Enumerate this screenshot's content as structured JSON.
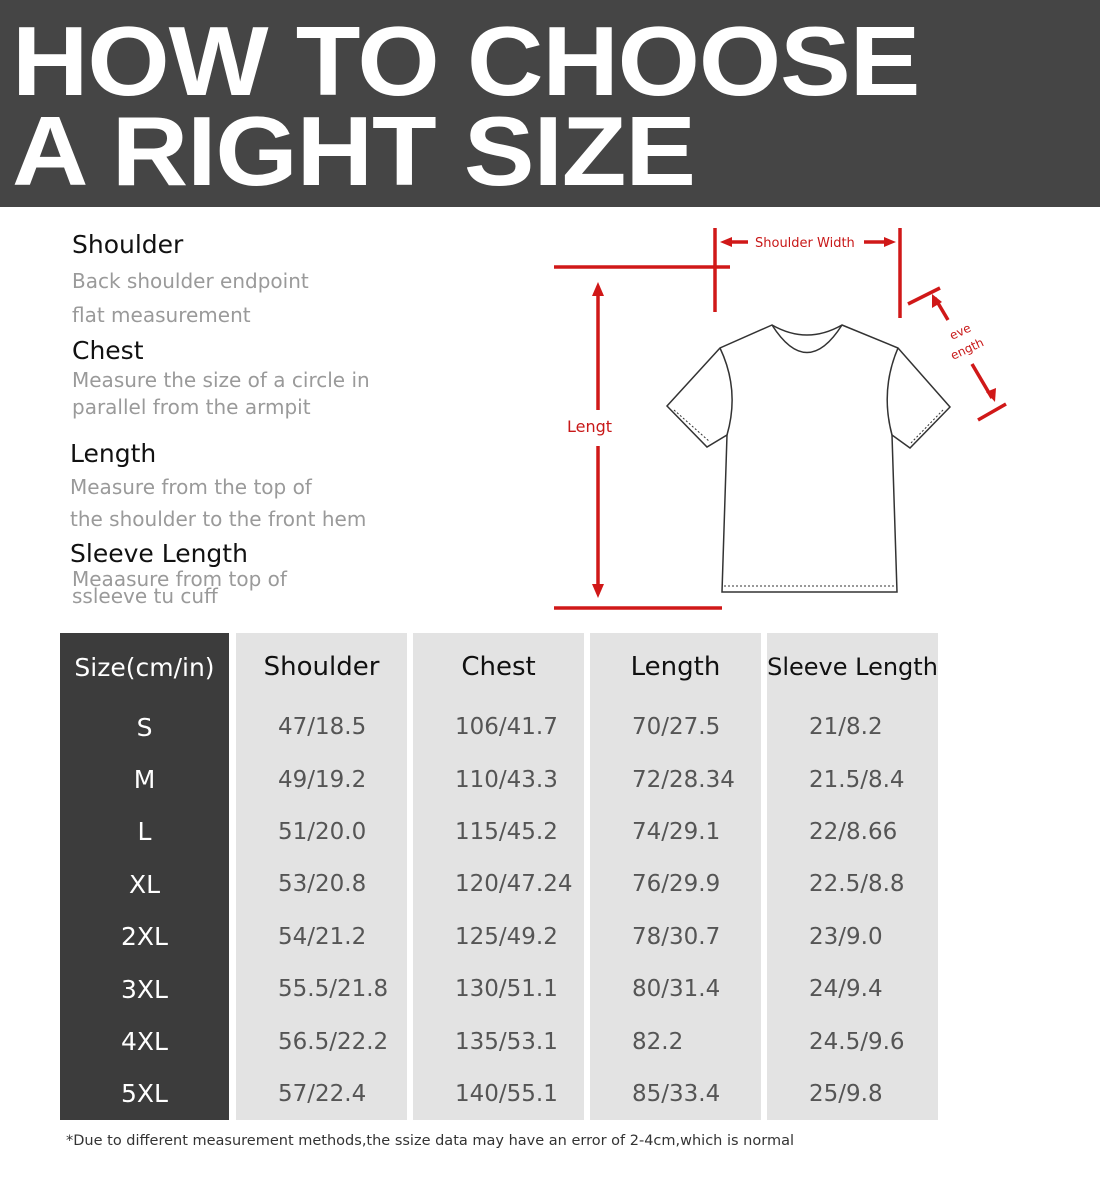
{
  "banner": {
    "line1": "HOW TO CHOOSE",
    "line2": "A RIGHT SIZE",
    "background": "#454545"
  },
  "definitions": [
    {
      "term": "Shoulder",
      "desc1": "Back shoulder endpoint",
      "desc2": "flat measurement"
    },
    {
      "term": "Chest",
      "desc1": "Measure the size of a circle in",
      "desc2": "parallel from the armpit"
    },
    {
      "term": "Length",
      "desc1": "Measure from the top of",
      "desc2": "the shoulder to the front hem"
    },
    {
      "term": "Sleeve Length",
      "desc1": "Meaasure from top of",
      "desc2": "ssleeve tu cuff"
    }
  ],
  "diagram": {
    "shoulder_label": "Shoulder Width",
    "length_label": "Lengt",
    "sleeve_label_1": "eve",
    "sleeve_label_2": "ength",
    "accent": "#d01818"
  },
  "table": {
    "headers": [
      "Size(cm/in)",
      "Shoulder",
      "Chest",
      "Length",
      "Sleeve Length"
    ],
    "sizes": [
      "S",
      "M",
      "L",
      "XL",
      "2XL",
      "3XL",
      "4XL",
      "5XL"
    ],
    "shoulder": [
      "47/18.5",
      "49/19.2",
      "51/20.0",
      "53/20.8",
      "54/21.2",
      "55.5/21.8",
      "56.5/22.2",
      "57/22.4"
    ],
    "chest": [
      "106/41.7",
      "110/43.3",
      "115/45.2",
      "120/47.24",
      "125/49.2",
      "130/51.1",
      "135/53.1",
      "140/55.1"
    ],
    "length": [
      "70/27.5",
      "72/28.34",
      "74/29.1",
      "76/29.9",
      "78/30.7",
      "80/31.4",
      "82.2",
      "85/33.4"
    ],
    "sleeve": [
      "21/8.2",
      "21.5/8.4",
      "22/8.66",
      "22.5/8.8",
      "23/9.0",
      "24/9.4",
      "24.5/9.6",
      "25/9.8"
    ]
  },
  "note": "*Due to different measurement methods,the ssize data may have an error of 2-4cm,which is normal"
}
